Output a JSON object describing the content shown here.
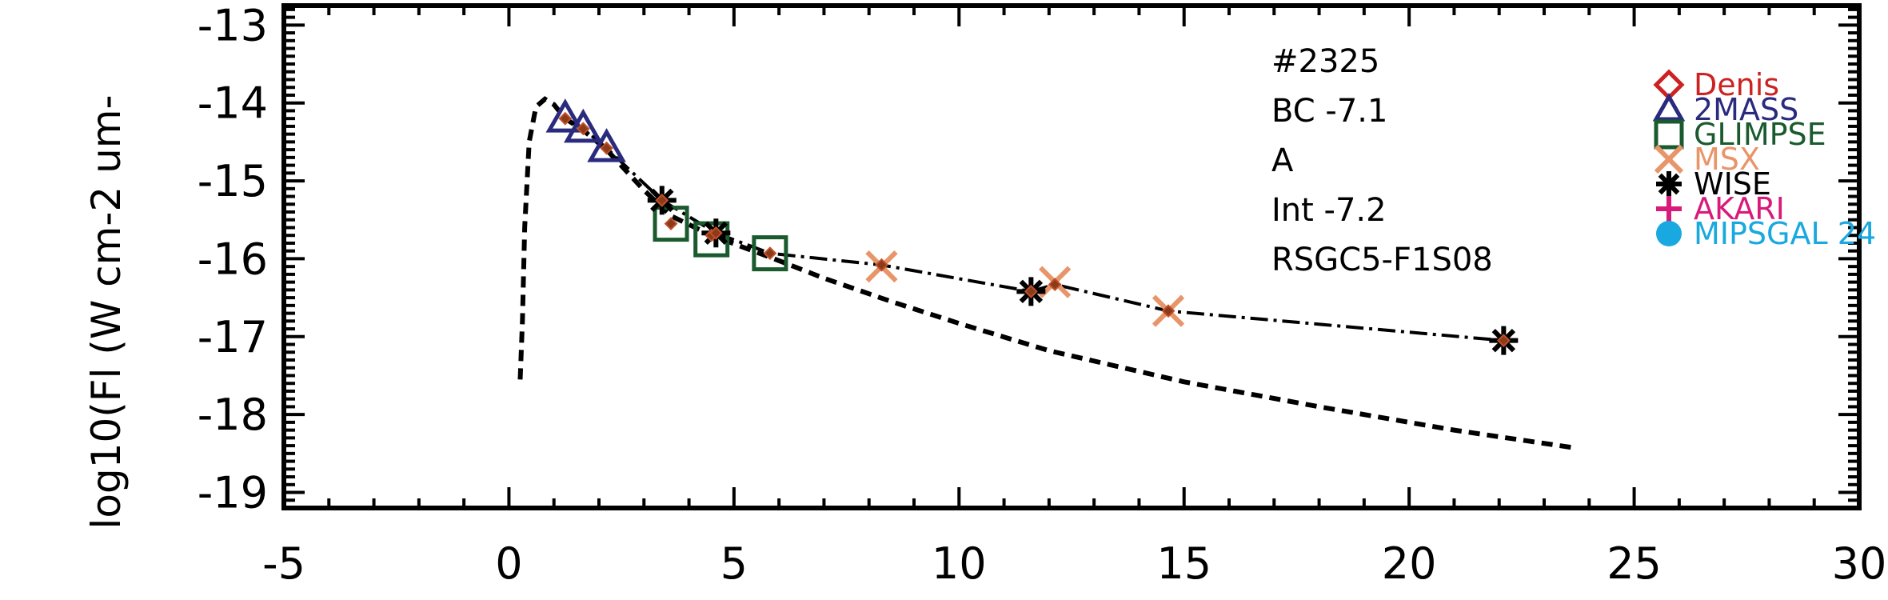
{
  "chart_data": {
    "type": "scatter",
    "title": "",
    "xlabel": "",
    "ylabel": "log10(Fl (W cm-2 um-",
    "xlim": [
      -5,
      30
    ],
    "ylim": [
      -19.2,
      -12.75
    ],
    "x_ticks": [
      "-5",
      "0",
      "5",
      "10",
      "15",
      "20",
      "25",
      "30"
    ],
    "y_ticks": [
      "-13",
      "-14",
      "-15",
      "-16",
      "-17",
      "-18",
      "-19"
    ],
    "x_tick_values": [
      -5,
      0,
      5,
      10,
      15,
      20,
      25,
      30
    ],
    "y_tick_values": [
      -13,
      -14,
      -15,
      -16,
      -17,
      -18,
      -19
    ],
    "annotations": [
      "#2325",
      "BC -7.1",
      "A",
      "Int -7.2",
      "RSGC5-F1S08"
    ],
    "legend": [
      {
        "name": "Denis",
        "marker": "diamond",
        "color": "#cc2222"
      },
      {
        "name": "2MASS",
        "marker": "triangle",
        "color": "#2a2a7e"
      },
      {
        "name": "GLIMPSE",
        "marker": "square",
        "color": "#1a5a2e"
      },
      {
        "name": "MSX",
        "marker": "cross",
        "color": "#e8956a"
      },
      {
        "name": "WISE",
        "marker": "asterisk",
        "color": "#000000"
      },
      {
        "name": "AKARI",
        "marker": "plus",
        "color": "#d81b7a"
      },
      {
        "name": "MIPSGAL 24",
        "marker": "circle",
        "color": "#19a8df"
      }
    ],
    "legend_placement": "right",
    "series": [
      {
        "name": "2MASS",
        "marker": "triangle",
        "color": "#2a2a7e",
        "x": [
          1.25,
          1.65,
          2.17
        ],
        "y": [
          -14.2,
          -14.33,
          -14.58
        ]
      },
      {
        "name": "GLIMPSE",
        "marker": "square",
        "color": "#1a5a2e",
        "x": [
          3.6,
          4.5,
          5.8
        ],
        "y": [
          -15.55,
          -15.75,
          -15.93
        ]
      },
      {
        "name": "MSX",
        "marker": "cross",
        "color": "#e8956a",
        "x": [
          8.28,
          12.13,
          14.65
        ],
        "y": [
          -16.1,
          -16.3,
          -16.67
        ]
      },
      {
        "name": "WISE",
        "marker": "asterisk",
        "color": "#000000",
        "x": [
          3.4,
          4.6,
          11.6,
          22.1
        ],
        "y": [
          -15.25,
          -15.67,
          -16.42,
          -17.05
        ]
      }
    ],
    "model_points": {
      "color": "#8b3a1a",
      "x": [
        1.25,
        1.65,
        2.17,
        3.4,
        3.6,
        4.5,
        4.6,
        5.8,
        8.28,
        11.6,
        12.13,
        14.65,
        22.1
      ],
      "y": [
        -14.2,
        -14.33,
        -14.58,
        -15.25,
        -15.55,
        -15.7,
        -15.67,
        -15.93,
        -16.08,
        -16.42,
        -16.33,
        -16.67,
        -17.05
      ]
    },
    "sed_curve": {
      "x": [
        0.25,
        0.3,
        0.35,
        0.45,
        0.6,
        0.8,
        1.0,
        1.25,
        1.65,
        2.17,
        3.0,
        3.6,
        4.5,
        5.8,
        7.0,
        8.5,
        10.0,
        12.0,
        15.0,
        18.0,
        21.0,
        23.7
      ],
      "y": [
        -17.55,
        -16.8,
        -15.6,
        -14.5,
        -14.05,
        -13.95,
        -14.02,
        -14.2,
        -14.35,
        -14.6,
        -15.12,
        -15.45,
        -15.7,
        -15.98,
        -16.25,
        -16.55,
        -16.83,
        -17.18,
        -17.58,
        -17.9,
        -18.2,
        -18.43
      ]
    },
    "fit_curve": {
      "x": [
        1.25,
        1.65,
        2.17,
        3.4,
        4.6,
        5.8,
        8.28,
        11.6,
        12.13,
        14.65,
        22.1
      ],
      "y": [
        -14.2,
        -14.33,
        -14.58,
        -15.25,
        -15.67,
        -15.93,
        -16.08,
        -16.42,
        -16.33,
        -16.67,
        -17.05
      ]
    }
  }
}
